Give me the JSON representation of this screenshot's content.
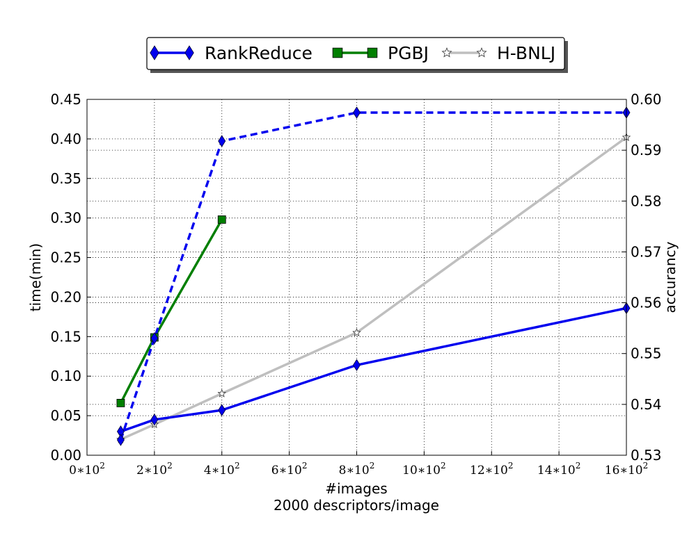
{
  "chart_data": {
    "type": "line",
    "xlabel": "#images",
    "xlabel_sub": "2000 descriptors/image",
    "ylabel_left": "time(min)",
    "ylabel_right": "accurancy",
    "xlim": [
      0,
      1600
    ],
    "ylim_left": [
      0,
      0.45
    ],
    "ylim_right": [
      0.53,
      0.6
    ],
    "x_ticks": [
      {
        "value": 0,
        "mantissa": "0",
        "base": "10",
        "exp": "2"
      },
      {
        "value": 200,
        "mantissa": "2",
        "base": "10",
        "exp": "2"
      },
      {
        "value": 400,
        "mantissa": "4",
        "base": "10",
        "exp": "2"
      },
      {
        "value": 600,
        "mantissa": "6",
        "base": "10",
        "exp": "2"
      },
      {
        "value": 800,
        "mantissa": "8",
        "base": "10",
        "exp": "2"
      },
      {
        "value": 1000,
        "mantissa": "10",
        "base": "10",
        "exp": "2"
      },
      {
        "value": 1200,
        "mantissa": "12",
        "base": "10",
        "exp": "2"
      },
      {
        "value": 1400,
        "mantissa": "14",
        "base": "10",
        "exp": "2"
      },
      {
        "value": 1600,
        "mantissa": "16",
        "base": "10",
        "exp": "2"
      }
    ],
    "y_left_ticks": [
      "0.00",
      "0.05",
      "0.10",
      "0.15",
      "0.20",
      "0.25",
      "0.30",
      "0.35",
      "0.40",
      "0.45"
    ],
    "y_right_ticks": [
      "0.53",
      "0.54",
      "0.55",
      "0.56",
      "0.57",
      "0.58",
      "0.59",
      "0.60"
    ],
    "grid": true,
    "legend_position": "top-center",
    "legend": [
      {
        "name": "RankReduce",
        "color": "#0000ee",
        "marker": "diamond"
      },
      {
        "name": "PGBJ",
        "color": "#007f00",
        "marker": "square"
      },
      {
        "name": "H-BNLJ",
        "color": "#bfbfbf",
        "marker": "star"
      }
    ],
    "series": [
      {
        "name": "RankReduce",
        "metric": "time",
        "axis": "left",
        "color": "#0000ee",
        "style": "solid",
        "marker": "diamond",
        "x": [
          100,
          200,
          400,
          800,
          1600
        ],
        "y": [
          0.03,
          0.045,
          0.057,
          0.114,
          0.186
        ]
      },
      {
        "name": "PGBJ",
        "metric": "time",
        "axis": "left",
        "color": "#007f00",
        "style": "solid",
        "marker": "square",
        "x": [
          100,
          200,
          400
        ],
        "y": [
          0.066,
          0.149,
          0.298
        ]
      },
      {
        "name": "H-BNLJ",
        "metric": "time",
        "axis": "left",
        "color": "#bfbfbf",
        "style": "solid",
        "marker": "star",
        "x": [
          100,
          200,
          400,
          800,
          1600
        ],
        "y": [
          0.02,
          0.039,
          0.078,
          0.155,
          0.402
        ]
      },
      {
        "name": "RankReduce",
        "metric": "accuracy",
        "axis": "right",
        "color": "#0000ee",
        "style": "dashed",
        "marker": "diamond",
        "x": [
          100,
          200,
          400,
          800,
          1600
        ],
        "y": [
          0.533,
          0.553,
          0.5918,
          0.5974,
          0.5974
        ]
      }
    ]
  }
}
